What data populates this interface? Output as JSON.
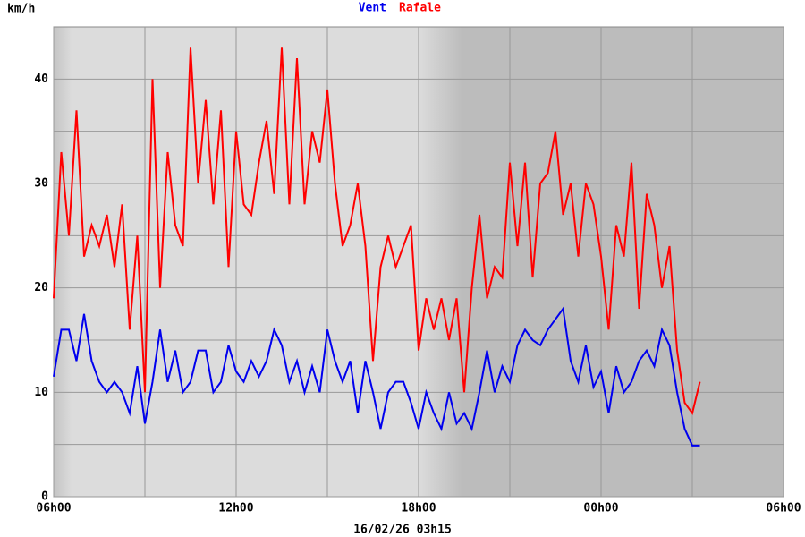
{
  "chart_data": {
    "type": "line",
    "ylabel": "km/h",
    "footer": "16/02/26 03h15",
    "x": [
      6,
      6.25,
      6.5,
      6.75,
      7,
      7.25,
      7.5,
      7.75,
      8,
      8.25,
      8.5,
      8.75,
      9,
      9.25,
      9.5,
      9.75,
      10,
      10.25,
      10.5,
      10.75,
      11,
      11.25,
      11.5,
      11.75,
      12,
      12.25,
      12.5,
      12.75,
      13,
      13.25,
      13.5,
      13.75,
      14,
      14.25,
      14.5,
      14.75,
      15,
      15.25,
      15.5,
      15.75,
      16,
      16.25,
      16.5,
      16.75,
      17,
      17.25,
      17.5,
      17.75,
      18,
      18.25,
      18.5,
      18.75,
      19,
      19.25,
      19.5,
      19.75,
      20,
      20.25,
      20.5,
      20.75,
      21,
      21.25,
      21.5,
      21.75,
      22,
      22.25,
      22.5,
      22.75,
      23,
      23.25,
      23.5,
      23.75,
      24,
      24.25,
      24.5,
      24.75,
      25,
      25.25,
      25.5,
      25.75,
      26,
      26.25,
      26.5,
      26.75,
      27,
      27.25
    ],
    "series": [
      {
        "name": "Vent",
        "color": "#0000ee",
        "values": [
          11.5,
          16,
          16,
          13,
          17.5,
          13,
          11,
          10,
          11,
          10,
          8,
          12.5,
          7,
          11,
          16,
          11,
          14,
          10,
          11,
          14,
          14,
          10,
          11,
          14.5,
          12,
          11,
          13,
          11.5,
          13,
          16,
          14.5,
          11,
          13,
          10,
          12.5,
          10,
          16,
          13,
          11,
          13,
          8,
          13,
          10,
          6.5,
          10,
          11,
          11,
          9,
          6.5,
          10,
          8,
          6.5,
          10,
          7,
          8,
          6.5,
          10,
          14,
          10,
          12.5,
          11,
          14.5,
          16,
          15,
          14.5,
          16,
          17,
          18,
          13,
          11,
          14.5,
          10.5,
          12,
          8,
          12.5,
          10,
          11,
          13,
          14,
          12.5,
          16,
          14.5,
          10,
          6.5,
          4.9,
          4.9
        ]
      },
      {
        "name": "Rafale",
        "color": "#ff0000",
        "values": [
          19,
          33,
          25,
          37,
          23,
          26,
          24,
          27,
          22,
          28,
          16,
          25,
          10,
          40,
          20,
          33,
          26,
          24,
          43,
          30,
          38,
          28,
          37,
          22,
          35,
          28,
          27,
          32,
          36,
          29,
          43,
          28,
          42,
          28,
          35,
          32,
          39,
          30,
          24,
          26,
          30,
          24,
          13,
          22,
          25,
          22,
          24,
          26,
          14,
          19,
          16,
          19,
          15,
          19,
          10,
          20,
          27,
          19,
          22,
          21,
          32,
          24,
          32,
          21,
          30,
          31,
          35,
          27,
          30,
          23,
          30,
          28,
          23,
          16,
          26,
          23,
          32,
          18,
          29,
          26,
          20,
          24,
          14,
          9,
          8,
          11
        ]
      }
    ],
    "xlim": [
      6,
      30
    ],
    "xticks": [
      {
        "value": 6,
        "label": "06h00"
      },
      {
        "value": 12,
        "label": "12h00"
      },
      {
        "value": 18,
        "label": "18h00"
      },
      {
        "value": 24,
        "label": "00h00"
      },
      {
        "value": 30,
        "label": "06h00"
      }
    ],
    "x_minor_ticks": [
      9,
      15,
      21,
      27
    ],
    "ylim": [
      0,
      45
    ],
    "yticks": [
      0,
      10,
      20,
      30,
      40
    ],
    "y_minor_ticks": [
      5,
      15,
      25,
      35
    ],
    "grid": true
  }
}
